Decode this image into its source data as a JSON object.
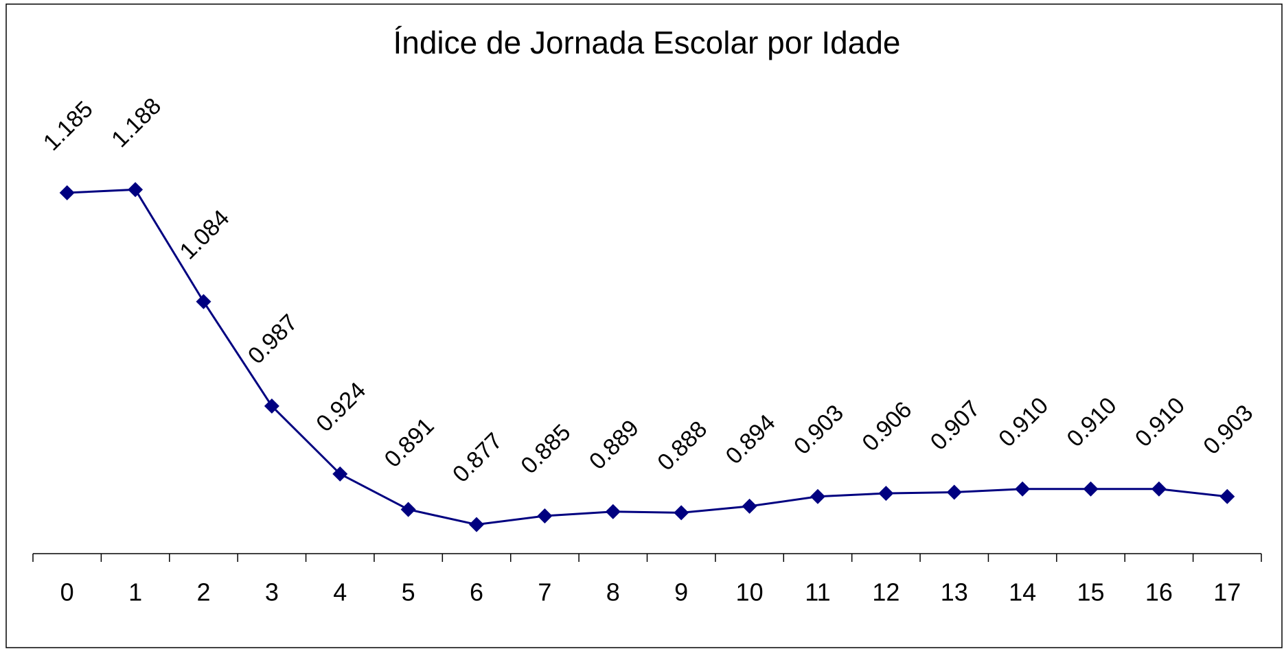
{
  "chart_data": {
    "type": "line",
    "title": "Índice de Jornada Escolar por Idade",
    "categories": [
      "0",
      "1",
      "2",
      "3",
      "4",
      "5",
      "6",
      "7",
      "8",
      "9",
      "10",
      "11",
      "12",
      "13",
      "14",
      "15",
      "16",
      "17"
    ],
    "series": [
      {
        "color": "#000080",
        "values": [
          1.185,
          1.188,
          1.084,
          0.987,
          0.924,
          0.891,
          0.877,
          0.885,
          0.889,
          0.888,
          0.894,
          0.903,
          0.906,
          0.907,
          0.91,
          0.91,
          0.91,
          0.903
        ],
        "value_labels": [
          "1.185",
          "1.188",
          "1.084",
          "0.987",
          "0.924",
          "0.891",
          "0.877",
          "0.885",
          "0.889",
          "0.888",
          "0.894",
          "0.903",
          "0.906",
          "0.907",
          "0.910",
          "0.910",
          "0.910",
          "0.903"
        ]
      }
    ],
    "ylim": [
      0.85,
      1.25
    ]
  }
}
